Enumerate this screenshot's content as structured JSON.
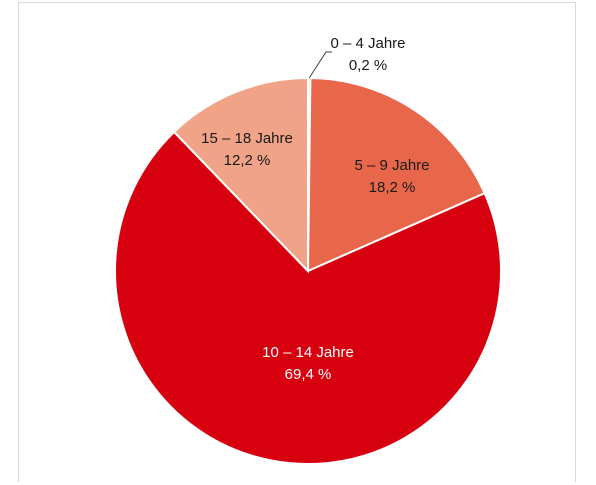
{
  "chart_data": {
    "type": "pie",
    "title": "",
    "categories": [
      "0 – 4 Jahre",
      "5 – 9 Jahre",
      "10 – 14 Jahre",
      "15 – 18 Jahre"
    ],
    "values": [
      0.2,
      18.2,
      69.4,
      12.2
    ],
    "value_labels": [
      "0,2 %",
      "18,2 %",
      "69,4 %",
      "12,2 %"
    ],
    "colors": [
      "#f4b183",
      "#e8674a",
      "#d7000f",
      "#f0a386"
    ],
    "label_colors": [
      "#1a1a1a",
      "#1a1a1a",
      "#ffffff",
      "#1a1a1a"
    ],
    "start_angle_deg": 0,
    "direction": "clockwise",
    "legend": "none"
  }
}
